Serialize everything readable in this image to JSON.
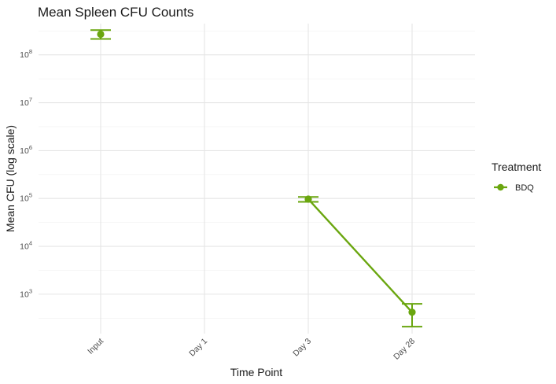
{
  "chart_data": {
    "type": "line",
    "title": "Mean Spleen CFU Counts",
    "xlabel": "Time Point",
    "ylabel": "Mean CFU (log scale)",
    "y_scale": "log10",
    "ylim": [
      150,
      450000000
    ],
    "y_ticks": [
      {
        "value": 1000,
        "base": "10",
        "exp": "3"
      },
      {
        "value": 10000,
        "base": "10",
        "exp": "4"
      },
      {
        "value": 100000,
        "base": "10",
        "exp": "5"
      },
      {
        "value": 1000000,
        "base": "10",
        "exp": "6"
      },
      {
        "value": 10000000,
        "base": "10",
        "exp": "7"
      },
      {
        "value": 100000000,
        "base": "10",
        "exp": "8"
      }
    ],
    "categories": [
      "Input",
      "Day 1",
      "Day 3",
      "Day 28"
    ],
    "grid": true,
    "legend": {
      "title": "Treatment",
      "placement": "right"
    },
    "series": [
      {
        "name": "BDQ",
        "color": "#6aa60f",
        "points": [
          {
            "x": "Input",
            "y": 270000000,
            "ymin": 215000000,
            "ymax": 330000000
          },
          {
            "x": "Day 1",
            "y": null
          },
          {
            "x": "Day 3",
            "y": 97000.0,
            "ymin": 85000,
            "ymax": 108000
          },
          {
            "x": "Day 28",
            "y": 420,
            "ymin": 210,
            "ymax": 630
          }
        ]
      }
    ]
  }
}
